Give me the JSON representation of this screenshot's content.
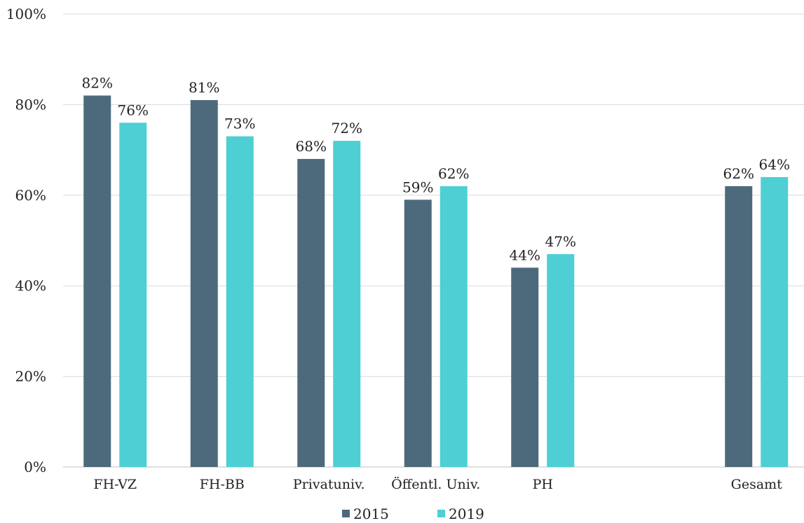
{
  "chart_data": {
    "type": "bar",
    "categories": [
      "FH-VZ",
      "FH-BB",
      "Privatuniv.",
      "Öffentl. Univ.",
      "PH",
      "",
      "Gesamt"
    ],
    "series": [
      {
        "name": "2015",
        "color": "#4d6a7c",
        "values": [
          82,
          81,
          68,
          59,
          44,
          null,
          62
        ],
        "labels": [
          "82%",
          "81%",
          "68%",
          "59%",
          "44%",
          "",
          "62%"
        ]
      },
      {
        "name": "2019",
        "color": "#4ecfd3",
        "values": [
          76,
          73,
          72,
          62,
          47,
          null,
          64
        ],
        "labels": [
          "76%",
          "73%",
          "72%",
          "62%",
          "47%",
          "",
          "64%"
        ]
      }
    ],
    "ylim": [
      0,
      100
    ],
    "yticks": [
      0,
      20,
      40,
      60,
      80,
      100
    ],
    "ytick_labels": [
      "0%",
      "20%",
      "40%",
      "60%",
      "80%",
      "100%"
    ],
    "grid": true,
    "legend_position": "bottom-center"
  }
}
